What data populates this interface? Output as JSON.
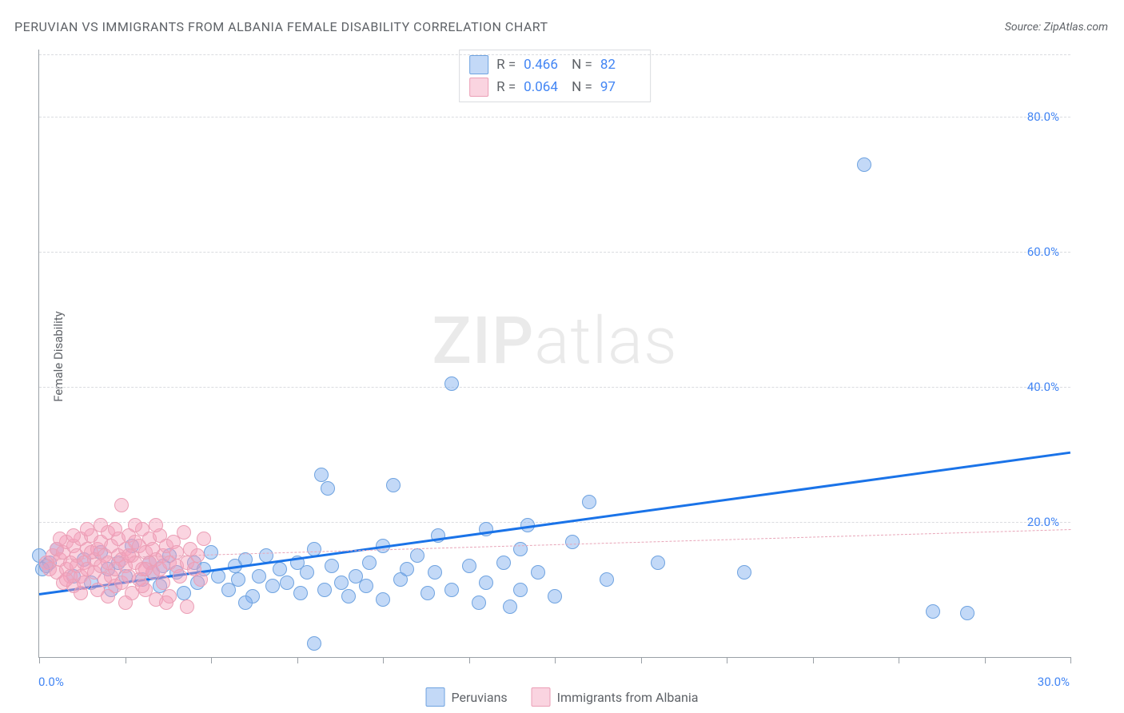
{
  "title": "PERUVIAN VS IMMIGRANTS FROM ALBANIA FEMALE DISABILITY CORRELATION CHART",
  "source": "Source: ZipAtlas.com",
  "ylabel": "Female Disability",
  "watermark_zip": "ZIP",
  "watermark_atlas": "atlas",
  "chart": {
    "type": "scatter",
    "xlim": [
      0,
      30
    ],
    "ylim": [
      0,
      90
    ],
    "x_ticks": [
      0,
      2.5,
      5,
      7.5,
      10,
      12.5,
      15,
      17.5,
      20,
      22.5,
      25,
      27.5,
      30
    ],
    "x_tick_labels": {
      "0": "0.0%",
      "30": "30.0%"
    },
    "y_ticks": [
      20,
      40,
      60,
      80
    ],
    "y_tick_labels": {
      "20": "20.0%",
      "40": "40.0%",
      "60": "60.0%",
      "80": "80.0%"
    },
    "background_color": "#ffffff",
    "grid_color": "#dadce0",
    "axis_color": "#9aa0a6",
    "text_color": "#5f6368",
    "value_color": "#4285f4",
    "title_fontsize": 16,
    "label_fontsize": 15,
    "legend_fontsize": 16,
    "stats_fontsize": 17
  },
  "series": [
    {
      "name": "Peruvians",
      "fill": "rgba(121,170,237,0.45)",
      "stroke": "#6fa3e0",
      "point_radius": 9,
      "trendline": {
        "color": "#1a73e8",
        "width": 3,
        "dash": "solid",
        "y_at_x0": 9.5,
        "y_at_x30": 30.5
      },
      "R_label": "R =",
      "R": "0.466",
      "N_label": "N =",
      "N": "82",
      "points": [
        [
          0.0,
          15.0
        ],
        [
          0.3,
          14.0
        ],
        [
          0.2,
          13.5
        ],
        [
          0.5,
          16.0
        ],
        [
          1.0,
          12.0
        ],
        [
          1.3,
          14.5
        ],
        [
          1.5,
          11.0
        ],
        [
          1.8,
          15.5
        ],
        [
          2.0,
          13.0
        ],
        [
          2.1,
          10.0
        ],
        [
          2.3,
          14.0
        ],
        [
          2.5,
          12.0
        ],
        [
          2.7,
          16.5
        ],
        [
          3.0,
          11.5
        ],
        [
          3.2,
          14.0
        ],
        [
          3.5,
          10.5
        ],
        [
          3.6,
          13.5
        ],
        [
          3.8,
          15.0
        ],
        [
          4.0,
          12.5
        ],
        [
          4.2,
          9.5
        ],
        [
          4.5,
          14.0
        ],
        [
          4.6,
          11.0
        ],
        [
          4.8,
          13.0
        ],
        [
          5.0,
          15.5
        ],
        [
          5.2,
          12.0
        ],
        [
          5.5,
          10.0
        ],
        [
          5.7,
          13.5
        ],
        [
          5.8,
          11.5
        ],
        [
          6.0,
          14.5
        ],
        [
          6.2,
          9.0
        ],
        [
          6.4,
          12.0
        ],
        [
          6.6,
          15.0
        ],
        [
          6.8,
          10.5
        ],
        [
          7.0,
          13.0
        ],
        [
          7.2,
          11.0
        ],
        [
          7.5,
          14.0
        ],
        [
          7.6,
          9.5
        ],
        [
          7.8,
          12.5
        ],
        [
          8.0,
          16.0
        ],
        [
          8.0,
          2.0
        ],
        [
          8.2,
          27.0
        ],
        [
          8.3,
          10.0
        ],
        [
          8.4,
          25.0
        ],
        [
          8.5,
          13.5
        ],
        [
          8.8,
          11.0
        ],
        [
          9.0,
          9.0
        ],
        [
          9.2,
          12.0
        ],
        [
          9.5,
          10.5
        ],
        [
          9.6,
          14.0
        ],
        [
          10.0,
          8.5
        ],
        [
          10.0,
          16.5
        ],
        [
          10.3,
          25.5
        ],
        [
          10.5,
          11.5
        ],
        [
          10.7,
          13.0
        ],
        [
          11.0,
          15.0
        ],
        [
          11.3,
          9.5
        ],
        [
          11.5,
          12.5
        ],
        [
          11.6,
          18.0
        ],
        [
          12.0,
          10.0
        ],
        [
          12.0,
          40.5
        ],
        [
          12.5,
          13.5
        ],
        [
          12.8,
          8.0
        ],
        [
          13.0,
          19.0
        ],
        [
          13.0,
          11.0
        ],
        [
          13.5,
          14.0
        ],
        [
          13.7,
          7.5
        ],
        [
          14.0,
          16.0
        ],
        [
          14.0,
          10.0
        ],
        [
          14.2,
          19.5
        ],
        [
          14.5,
          12.5
        ],
        [
          15.0,
          9.0
        ],
        [
          15.5,
          17.0
        ],
        [
          16.0,
          23.0
        ],
        [
          16.5,
          11.5
        ],
        [
          18.0,
          14.0
        ],
        [
          20.5,
          12.5
        ],
        [
          24.0,
          73.0
        ],
        [
          26.0,
          6.8
        ],
        [
          27.0,
          6.5
        ],
        [
          0.1,
          13.0
        ],
        [
          3.3,
          12.5
        ],
        [
          6.0,
          8.0
        ]
      ]
    },
    {
      "name": "Immigrants from Albania",
      "fill": "rgba(244,160,186,0.45)",
      "stroke": "#eb9fb6",
      "point_radius": 9,
      "trendline": {
        "color": "#e8a5b8",
        "width": 1.5,
        "dash": "dashed",
        "y_at_x0": 14.5,
        "y_at_x30": 19.0
      },
      "R_label": "R =",
      "R": "0.064",
      "N_label": "N =",
      "N": "97",
      "points": [
        [
          0.2,
          14.0
        ],
        [
          0.3,
          13.0
        ],
        [
          0.4,
          15.0
        ],
        [
          0.5,
          12.5
        ],
        [
          0.5,
          16.0
        ],
        [
          0.6,
          14.5
        ],
        [
          0.7,
          11.0
        ],
        [
          0.7,
          15.5
        ],
        [
          0.8,
          13.0
        ],
        [
          0.8,
          17.0
        ],
        [
          0.9,
          12.0
        ],
        [
          0.9,
          14.0
        ],
        [
          1.0,
          16.5
        ],
        [
          1.0,
          10.5
        ],
        [
          1.1,
          15.0
        ],
        [
          1.1,
          13.5
        ],
        [
          1.2,
          17.5
        ],
        [
          1.2,
          12.0
        ],
        [
          1.3,
          14.0
        ],
        [
          1.3,
          11.0
        ],
        [
          1.4,
          16.0
        ],
        [
          1.4,
          13.0
        ],
        [
          1.5,
          15.5
        ],
        [
          1.5,
          18.0
        ],
        [
          1.6,
          12.5
        ],
        [
          1.6,
          14.5
        ],
        [
          1.7,
          10.0
        ],
        [
          1.7,
          16.0
        ],
        [
          1.8,
          13.5
        ],
        [
          1.8,
          17.0
        ],
        [
          1.9,
          11.5
        ],
        [
          1.9,
          15.0
        ],
        [
          2.0,
          14.0
        ],
        [
          2.0,
          18.5
        ],
        [
          2.1,
          12.0
        ],
        [
          2.1,
          16.5
        ],
        [
          2.2,
          13.0
        ],
        [
          2.2,
          10.5
        ],
        [
          2.3,
          15.0
        ],
        [
          2.3,
          17.5
        ],
        [
          2.4,
          14.5
        ],
        [
          2.4,
          11.0
        ],
        [
          2.4,
          22.5
        ],
        [
          2.5,
          16.0
        ],
        [
          2.5,
          13.5
        ],
        [
          2.6,
          12.0
        ],
        [
          2.6,
          18.0
        ],
        [
          2.7,
          15.0
        ],
        [
          2.7,
          9.5
        ],
        [
          2.8,
          14.0
        ],
        [
          2.8,
          17.0
        ],
        [
          2.9,
          11.5
        ],
        [
          2.9,
          16.5
        ],
        [
          3.0,
          13.0
        ],
        [
          3.0,
          19.0
        ],
        [
          3.1,
          15.5
        ],
        [
          3.1,
          10.0
        ],
        [
          3.2,
          14.0
        ],
        [
          3.2,
          17.5
        ],
        [
          3.3,
          12.5
        ],
        [
          3.3,
          16.0
        ],
        [
          3.4,
          14.5
        ],
        [
          3.4,
          8.5
        ],
        [
          3.5,
          18.0
        ],
        [
          3.5,
          13.0
        ],
        [
          3.6,
          15.0
        ],
        [
          3.6,
          11.0
        ],
        [
          3.7,
          16.5
        ],
        [
          3.8,
          14.0
        ],
        [
          3.8,
          9.0
        ],
        [
          3.9,
          17.0
        ],
        [
          4.0,
          13.5
        ],
        [
          4.0,
          15.5
        ],
        [
          4.1,
          12.0
        ],
        [
          4.2,
          18.5
        ],
        [
          4.3,
          14.0
        ],
        [
          4.3,
          7.5
        ],
        [
          4.4,
          16.0
        ],
        [
          4.5,
          13.0
        ],
        [
          4.6,
          15.0
        ],
        [
          4.7,
          11.5
        ],
        [
          4.8,
          17.5
        ],
        [
          0.6,
          17.5
        ],
        [
          0.8,
          11.5
        ],
        [
          1.0,
          18.0
        ],
        [
          1.2,
          9.5
        ],
        [
          1.4,
          19.0
        ],
        [
          1.8,
          19.5
        ],
        [
          2.0,
          9.0
        ],
        [
          2.2,
          19.0
        ],
        [
          2.5,
          8.0
        ],
        [
          2.8,
          19.5
        ],
        [
          3.0,
          10.5
        ],
        [
          3.4,
          19.5
        ],
        [
          3.7,
          8.0
        ],
        [
          3.1,
          13.0
        ],
        [
          2.6,
          15.0
        ]
      ]
    }
  ]
}
